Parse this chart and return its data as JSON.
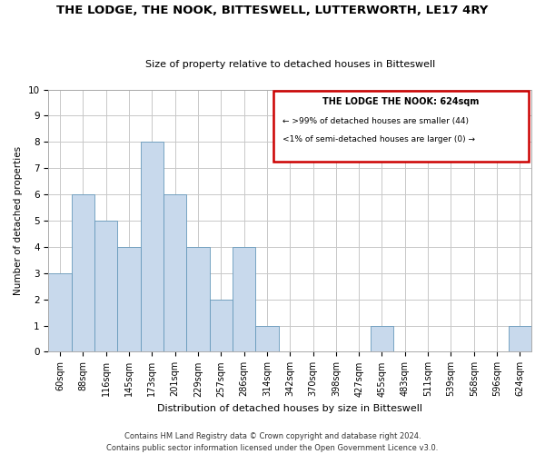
{
  "title": "THE LODGE, THE NOOK, BITTESWELL, LUTTERWORTH, LE17 4RY",
  "subtitle": "Size of property relative to detached houses in Bitteswell",
  "xlabel": "Distribution of detached houses by size in Bitteswell",
  "ylabel": "Number of detached properties",
  "bar_labels": [
    "60sqm",
    "88sqm",
    "116sqm",
    "145sqm",
    "173sqm",
    "201sqm",
    "229sqm",
    "257sqm",
    "286sqm",
    "314sqm",
    "342sqm",
    "370sqm",
    "398sqm",
    "427sqm",
    "455sqm",
    "483sqm",
    "511sqm",
    "539sqm",
    "568sqm",
    "596sqm",
    "624sqm"
  ],
  "bar_values": [
    3,
    6,
    5,
    4,
    8,
    6,
    4,
    2,
    4,
    1,
    0,
    0,
    0,
    0,
    1,
    0,
    0,
    0,
    0,
    0,
    1
  ],
  "bar_color": "#c8d9ec",
  "bar_edgecolor": "#6699bb",
  "ylim": [
    0,
    10
  ],
  "yticks": [
    0,
    1,
    2,
    3,
    4,
    5,
    6,
    7,
    8,
    9,
    10
  ],
  "legend_title": "THE LODGE THE NOOK: 624sqm",
  "legend_line1": "← >99% of detached houses are smaller (44)",
  "legend_line2": "<1% of semi-detached houses are larger (0) →",
  "legend_box_color": "#ffffff",
  "legend_box_edgecolor": "#cc0000",
  "footer_line1": "Contains HM Land Registry data © Crown copyright and database right 2024.",
  "footer_line2": "Contains public sector information licensed under the Open Government Licence v3.0.",
  "grid_color": "#c8c8c8",
  "background_color": "#ffffff",
  "title_fontsize": 9.5,
  "subtitle_fontsize": 8,
  "xlabel_fontsize": 8,
  "ylabel_fontsize": 7.5,
  "tick_fontsize": 7,
  "footer_fontsize": 6
}
